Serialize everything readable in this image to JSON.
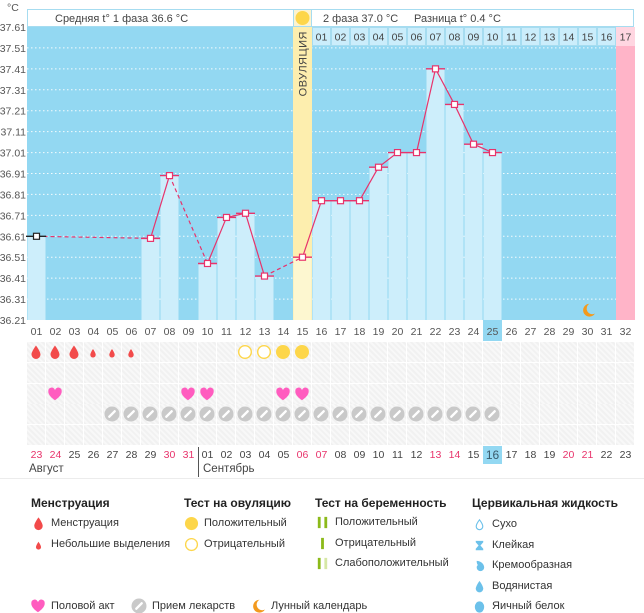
{
  "units": "°C",
  "header": {
    "phase1_label": "Средняя t° 1 фаза 36.6 °C",
    "phase2_label": "2 фаза 37.0 °C",
    "difference_label": "Разница t° 0.4 °C",
    "ovulation_label": "ОВУЛЯЦИЯ"
  },
  "chart_data": {
    "type": "bar",
    "title": "",
    "xlabel": "",
    "ylabel": "°C",
    "ylim": [
      36.21,
      37.61
    ],
    "yticks": [
      37.61,
      37.51,
      37.41,
      37.31,
      37.21,
      37.11,
      37.01,
      36.91,
      36.81,
      36.71,
      36.61,
      36.51,
      36.41,
      36.31,
      36.21
    ],
    "grid": true,
    "cycle_day_labels": [
      "01",
      "02",
      "03",
      "04",
      "05",
      "06",
      "07",
      "08",
      "09",
      "10",
      "11",
      "12",
      "13",
      "14",
      "15",
      "16",
      "17",
      "18",
      "19",
      "20",
      "21",
      "22",
      "23",
      "24",
      "25",
      "26",
      "27",
      "28",
      "29",
      "30",
      "31",
      "32"
    ],
    "phase2_start_day": 16,
    "phase2_day_labels": [
      "01",
      "02",
      "03",
      "04",
      "05",
      "06",
      "07",
      "08",
      "09",
      "10",
      "11",
      "12",
      "13",
      "14",
      "15",
      "16",
      "17"
    ],
    "temperatures": [
      {
        "day": 1,
        "value": 36.61
      },
      {
        "day": 7,
        "value": 36.6
      },
      {
        "day": 8,
        "value": 36.9
      },
      {
        "day": 10,
        "value": 36.48
      },
      {
        "day": 11,
        "value": 36.7
      },
      {
        "day": 12,
        "value": 36.72
      },
      {
        "day": 13,
        "value": 36.42
      },
      {
        "day": 15,
        "value": 36.51
      },
      {
        "day": 16,
        "value": 36.78
      },
      {
        "day": 17,
        "value": 36.78
      },
      {
        "day": 18,
        "value": 36.78
      },
      {
        "day": 19,
        "value": 36.94
      },
      {
        "day": 20,
        "value": 37.01
      },
      {
        "day": 21,
        "value": 37.01
      },
      {
        "day": 22,
        "value": 37.41
      },
      {
        "day": 23,
        "value": 37.24
      },
      {
        "day": 24,
        "value": 37.05
      },
      {
        "day": 25,
        "value": 37.01
      }
    ],
    "ovulation_day": 15,
    "today_cycle_day": 25,
    "next_period_day": 32,
    "moon_day": 30
  },
  "events": {
    "menstruation": [
      {
        "day": 1,
        "icon": "drop-large"
      },
      {
        "day": 2,
        "icon": "drop-large"
      },
      {
        "day": 3,
        "icon": "drop-large"
      },
      {
        "day": 4,
        "icon": "drop-small"
      },
      {
        "day": 5,
        "icon": "drop-small"
      },
      {
        "day": 6,
        "icon": "drop-small"
      }
    ],
    "ovulation_tests": [
      {
        "day": 12,
        "icon": "circle-outline",
        "result": "Отрицательный"
      },
      {
        "day": 13,
        "icon": "circle-outline",
        "result": "Отрицательный"
      },
      {
        "day": 14,
        "icon": "circle-filled",
        "result": "Положительный"
      },
      {
        "day": 15,
        "icon": "circle-filled",
        "result": "Положительный"
      }
    ],
    "cervical_fluid": [],
    "intercourse": [
      2,
      9,
      10,
      14,
      15
    ],
    "medication": [
      5,
      6,
      7,
      8,
      9,
      10,
      11,
      12,
      13,
      14,
      15,
      16,
      17,
      18,
      19,
      20,
      21,
      22,
      23,
      24,
      25
    ],
    "pregnancy_tests": []
  },
  "dates": [
    {
      "label": "23",
      "weekend": true
    },
    {
      "label": "24",
      "weekend": true
    },
    {
      "label": "25",
      "weekend": false
    },
    {
      "label": "26",
      "weekend": false
    },
    {
      "label": "27",
      "weekend": false
    },
    {
      "label": "28",
      "weekend": false
    },
    {
      "label": "29",
      "weekend": false
    },
    {
      "label": "30",
      "weekend": true
    },
    {
      "label": "31",
      "weekend": true
    },
    {
      "label": "01",
      "weekend": false
    },
    {
      "label": "02",
      "weekend": false
    },
    {
      "label": "03",
      "weekend": false
    },
    {
      "label": "04",
      "weekend": false
    },
    {
      "label": "05",
      "weekend": false
    },
    {
      "label": "06",
      "weekend": true
    },
    {
      "label": "07",
      "weekend": true
    },
    {
      "label": "08",
      "weekend": false
    },
    {
      "label": "09",
      "weekend": false
    },
    {
      "label": "10",
      "weekend": false
    },
    {
      "label": "11",
      "weekend": false
    },
    {
      "label": "12",
      "weekend": false
    },
    {
      "label": "13",
      "weekend": true
    },
    {
      "label": "14",
      "weekend": true
    },
    {
      "label": "15",
      "weekend": false
    },
    {
      "label": "16",
      "weekend": false,
      "today": true
    },
    {
      "label": "17",
      "weekend": false
    },
    {
      "label": "18",
      "weekend": false
    },
    {
      "label": "19",
      "weekend": false
    },
    {
      "label": "20",
      "weekend": true
    },
    {
      "label": "21",
      "weekend": true
    },
    {
      "label": "22",
      "weekend": false
    },
    {
      "label": "23",
      "weekend": false
    }
  ],
  "months": [
    {
      "label": "Август",
      "start_day": 1
    },
    {
      "label": "Сентябрь",
      "start_day": 10
    }
  ],
  "legend": {
    "menstruation": {
      "title": "Менструация",
      "items": [
        {
          "icon": "drop-large",
          "label": "Менструация"
        },
        {
          "icon": "drop-small",
          "label": "Небольшие выделения"
        }
      ]
    },
    "ovulation_test": {
      "title": "Тест на овуляцию",
      "items": [
        {
          "icon": "circle-filled",
          "label": "Положительный"
        },
        {
          "icon": "circle-outline",
          "label": "Отрицательный"
        }
      ]
    },
    "pregnancy_test": {
      "title": "Тест на беременность",
      "items": [
        {
          "icon": "bar-double",
          "label": "Положительный"
        },
        {
          "icon": "bar-single",
          "label": "Отрицательный"
        },
        {
          "icon": "bar-weak",
          "label": "Слабоположительный"
        }
      ]
    },
    "cervical_fluid": {
      "title": "Цервикальная жидкость",
      "items": [
        {
          "icon": "cf-dry",
          "label": "Сухо"
        },
        {
          "icon": "cf-sticky",
          "label": "Клейкая"
        },
        {
          "icon": "cf-creamy",
          "label": "Кремообразная"
        },
        {
          "icon": "cf-watery",
          "label": "Водянистая"
        },
        {
          "icon": "cf-eggwhite",
          "label": "Яичный белок"
        }
      ]
    },
    "other": [
      {
        "icon": "heart",
        "label": "Половой акт"
      },
      {
        "icon": "pill",
        "label": "Прием лекарств"
      },
      {
        "icon": "moon",
        "label": "Лунный календарь"
      }
    ]
  },
  "colors": {
    "plot_bg": "#93d8f2",
    "bar": "#cdeefb",
    "bar_ovulation": "#fdf7d0",
    "line": "#e8336b",
    "ovulation_column": "#fdeeae",
    "next_period_column": "#ffb4c8",
    "weekend_date": "#e8336b",
    "today_bg": "#93d8f2",
    "header_border": "#a6dcf0"
  }
}
